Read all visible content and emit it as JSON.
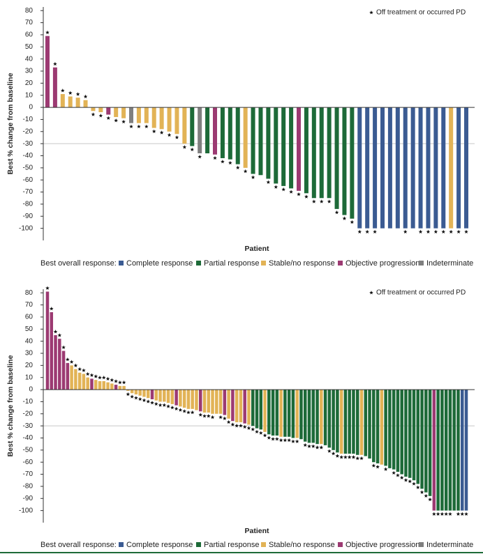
{
  "chart_data": [
    {
      "type": "bar",
      "y_label": "Best % change from baseline",
      "x_label": "Patient",
      "note": "Off treatment or occurred PD",
      "legend_title": "Best overall response:",
      "legend": [
        {
          "name": "Complete response",
          "color": "#3b5b92"
        },
        {
          "name": "Partial response",
          "color": "#1d6a38"
        },
        {
          "name": "Stable/no response",
          "color": "#e2b356"
        },
        {
          "name": "Objective progression",
          "color": "#9c3a72"
        },
        {
          "name": "Indeterminate",
          "color": "#7f7f7f"
        }
      ],
      "values": [
        59,
        33,
        11,
        9,
        8,
        6,
        -3,
        -4,
        -6,
        -8,
        -9,
        -13,
        -13,
        -13,
        -17,
        -18,
        -20,
        -22,
        -30,
        -32,
        -38,
        -38,
        -39,
        -42,
        -43,
        -47,
        -50,
        -55,
        -56,
        -59,
        -63,
        -65,
        -67,
        -69,
        -71,
        -75,
        -75,
        -75,
        -84,
        -89,
        -92,
        -100,
        -100,
        -100,
        -100,
        -100,
        -100,
        -100,
        -100,
        -100,
        -100,
        -100,
        -100,
        -100,
        -100,
        -100
      ],
      "colors": [
        "#9c3a72",
        "#9c3a72",
        "#e2b356",
        "#e2b356",
        "#e2b356",
        "#e2b356",
        "#e2b356",
        "#e2b356",
        "#9c3a72",
        "#e2b356",
        "#e2b356",
        "#7f7f7f",
        "#e2b356",
        "#e2b356",
        "#e2b356",
        "#e2b356",
        "#e2b356",
        "#e2b356",
        "#e2b356",
        "#1d6a38",
        "#7f7f7f",
        "#1d6a38",
        "#9c3a72",
        "#1d6a38",
        "#1d6a38",
        "#1d6a38",
        "#e2b356",
        "#1d6a38",
        "#1d6a38",
        "#1d6a38",
        "#1d6a38",
        "#1d6a38",
        "#1d6a38",
        "#9c3a72",
        "#1d6a38",
        "#1d6a38",
        "#1d6a38",
        "#1d6a38",
        "#1d6a38",
        "#1d6a38",
        "#1d6a38",
        "#3b5b92",
        "#3b5b92",
        "#3b5b92",
        "#3b5b92",
        "#3b5b92",
        "#3b5b92",
        "#3b5b92",
        "#3b5b92",
        "#3b5b92",
        "#3b5b92",
        "#3b5b92",
        "#3b5b92",
        "#e2b356",
        "#3b5b92",
        "#3b5b92"
      ],
      "off_treatment": [
        true,
        true,
        true,
        true,
        true,
        true,
        true,
        true,
        true,
        true,
        true,
        true,
        true,
        true,
        true,
        true,
        true,
        true,
        true,
        true,
        true,
        false,
        true,
        true,
        true,
        true,
        true,
        true,
        false,
        true,
        true,
        true,
        true,
        true,
        true,
        true,
        true,
        true,
        true,
        true,
        true,
        true,
        true,
        true,
        false,
        false,
        false,
        true,
        false,
        true,
        true,
        true,
        true,
        true,
        true,
        true
      ],
      "ylim": [
        -110,
        83
      ],
      "yticks": [
        -100,
        -90,
        -80,
        -70,
        -60,
        -50,
        -40,
        -30,
        -20,
        -10,
        0,
        10,
        20,
        30,
        40,
        50,
        60,
        70,
        80
      ],
      "reference_line": -30
    },
    {
      "type": "bar",
      "y_label": "Best % change from baseline",
      "x_label": "Patient",
      "note": "Off treatment or occurred PD",
      "legend_title": "Best overall response:",
      "legend": [
        {
          "name": "Complete response",
          "color": "#3b5b92"
        },
        {
          "name": "Partial response",
          "color": "#1d6a38"
        },
        {
          "name": "Stable/no response",
          "color": "#e2b356"
        },
        {
          "name": "Objective progression",
          "color": "#9c3a72"
        },
        {
          "name": "Indeterminate",
          "color": "#7f7f7f"
        }
      ],
      "values": [
        81,
        64,
        45,
        42,
        32,
        22,
        20,
        17,
        14,
        13,
        10,
        9,
        8,
        7,
        7,
        6,
        5,
        4,
        3,
        3,
        -1,
        -3,
        -4,
        -5,
        -6,
        -7,
        -8,
        -9,
        -10,
        -10,
        -11,
        -12,
        -13,
        -14,
        -15,
        -16,
        -16,
        -17,
        -18,
        -19,
        -19,
        -20,
        -20,
        -20,
        -21,
        -24,
        -26,
        -27,
        -27,
        -28,
        -29,
        -30,
        -32,
        -33,
        -35,
        -37,
        -38,
        -38,
        -39,
        -39,
        -39,
        -40,
        -40,
        -41,
        -43,
        -44,
        -44,
        -45,
        -45,
        -46,
        -48,
        -50,
        -52,
        -53,
        -53,
        -53,
        -53,
        -54,
        -54,
        -55,
        -57,
        -60,
        -61,
        -62,
        -63,
        -65,
        -66,
        -68,
        -70,
        -72,
        -73,
        -75,
        -78,
        -82,
        -85,
        -88,
        -100,
        -100,
        -100,
        -100,
        -100,
        -100,
        -100,
        -100,
        -100
      ],
      "colors": [
        "#9c3a72",
        "#9c3a72",
        "#9c3a72",
        "#9c3a72",
        "#9c3a72",
        "#9c3a72",
        "#e2b356",
        "#e2b356",
        "#e2b356",
        "#e2b356",
        "#e2b356",
        "#9c3a72",
        "#e2b356",
        "#e2b356",
        "#e2b356",
        "#e2b356",
        "#e2b356",
        "#9c3a72",
        "#e2b356",
        "#e2b356",
        "#e2b356",
        "#e2b356",
        "#e2b356",
        "#e2b356",
        "#e2b356",
        "#e2b356",
        "#9c3a72",
        "#e2b356",
        "#e2b356",
        "#e2b356",
        "#e2b356",
        "#e2b356",
        "#9c3a72",
        "#e2b356",
        "#e2b356",
        "#e2b356",
        "#e2b356",
        "#e2b356",
        "#9c3a72",
        "#e2b356",
        "#e2b356",
        "#e2b356",
        "#e2b356",
        "#e2b356",
        "#9c3a72",
        "#e2b356",
        "#9c3a72",
        "#e2b356",
        "#e2b356",
        "#9c3a72",
        "#e2b356",
        "#1d6a38",
        "#1d6a38",
        "#1d6a38",
        "#e2b356",
        "#1d6a38",
        "#1d6a38",
        "#1d6a38",
        "#e2b356",
        "#1d6a38",
        "#1d6a38",
        "#1d6a38",
        "#e2b356",
        "#1d6a38",
        "#1d6a38",
        "#1d6a38",
        "#1d6a38",
        "#1d6a38",
        "#e2b356",
        "#1d6a38",
        "#1d6a38",
        "#1d6a38",
        "#1d6a38",
        "#e2b356",
        "#1d6a38",
        "#1d6a38",
        "#1d6a38",
        "#1d6a38",
        "#e2b356",
        "#1d6a38",
        "#1d6a38",
        "#1d6a38",
        "#1d6a38",
        "#e2b356",
        "#1d6a38",
        "#1d6a38",
        "#1d6a38",
        "#1d6a38",
        "#1d6a38",
        "#1d6a38",
        "#1d6a38",
        "#1d6a38",
        "#1d6a38",
        "#1d6a38",
        "#1d6a38",
        "#1d6a38",
        "#9c3a72",
        "#1d6a38",
        "#1d6a38",
        "#1d6a38",
        "#1d6a38",
        "#1d6a38",
        "#1d6a38",
        "#3b5b92",
        "#3b5b92"
      ],
      "off_treatment": [
        true,
        true,
        true,
        true,
        true,
        true,
        true,
        true,
        true,
        true,
        true,
        true,
        true,
        true,
        true,
        true,
        true,
        true,
        true,
        true,
        true,
        true,
        true,
        true,
        true,
        true,
        true,
        true,
        true,
        true,
        true,
        true,
        true,
        true,
        true,
        true,
        true,
        false,
        true,
        true,
        true,
        true,
        false,
        true,
        true,
        true,
        true,
        true,
        true,
        true,
        true,
        true,
        true,
        true,
        true,
        true,
        true,
        true,
        true,
        true,
        true,
        true,
        true,
        false,
        true,
        true,
        true,
        true,
        true,
        false,
        true,
        true,
        true,
        true,
        true,
        true,
        true,
        true,
        true,
        false,
        false,
        true,
        true,
        false,
        true,
        false,
        true,
        true,
        true,
        true,
        true,
        true,
        true,
        true,
        true,
        true,
        true,
        true,
        true,
        true,
        true,
        false,
        true,
        true,
        true
      ],
      "ylim": [
        -110,
        83
      ],
      "yticks": [
        -100,
        -90,
        -80,
        -70,
        -60,
        -50,
        -40,
        -30,
        -20,
        -10,
        0,
        10,
        20,
        30,
        40,
        50,
        60,
        70,
        80
      ],
      "reference_line": -30
    }
  ]
}
